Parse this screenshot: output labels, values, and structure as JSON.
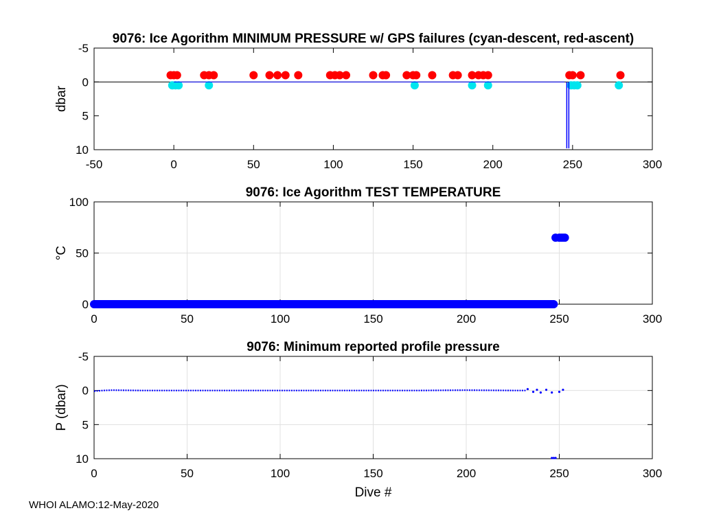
{
  "footer": "WHOI ALAMO:12-May-2020",
  "colors": {
    "cyan": "#00e5ee",
    "red": "#ff0000",
    "blue": "#0000ff",
    "grid": "#e0e0e0",
    "axis": "#000000"
  },
  "chart_data": [
    {
      "type": "scatter",
      "title": "9076: Ice Agorithm MINIMUM PRESSURE w/ GPS failures (cyan-descent, red-ascent)",
      "xlabel": "",
      "ylabel": "dbar",
      "xlim": [
        -50,
        300
      ],
      "ylim": [
        -5,
        10
      ],
      "y_reversed": true,
      "xticks": [
        -50,
        0,
        50,
        100,
        150,
        200,
        250,
        300
      ],
      "yticks": [
        -5,
        0,
        5,
        10
      ],
      "grid": false,
      "series": [
        {
          "color": "cyan",
          "marker": "circle",
          "x": [
            -1,
            1,
            3,
            22,
            151,
            187,
            197,
            249,
            251,
            253,
            279
          ],
          "y": [
            0.5,
            0.5,
            0.5,
            0.5,
            0.5,
            0.5,
            0.5,
            0.5,
            0.5,
            0.5,
            0.5
          ]
        },
        {
          "color": "red",
          "marker": "circle",
          "x": [
            -2,
            0,
            2,
            19,
            22,
            25,
            50,
            60,
            65,
            70,
            78,
            98,
            101,
            104,
            108,
            125,
            131,
            133,
            146,
            150,
            152,
            162,
            175,
            178,
            187,
            191,
            194,
            197,
            248,
            250,
            255,
            280
          ],
          "y": [
            -1,
            -1,
            -1,
            -1,
            -1,
            -1,
            -1,
            -1,
            -1,
            -1,
            -1,
            -1,
            -1,
            -1,
            -1,
            -1,
            -1,
            -1,
            -1,
            -1,
            -1,
            -1,
            -1,
            -1,
            -1,
            -1,
            -1,
            -1,
            -1,
            -1,
            -1,
            -1
          ]
        },
        {
          "color": "blue",
          "marker": "line",
          "x": [
            0,
            50,
            100,
            150,
            200,
            245
          ],
          "y": [
            0,
            0,
            0,
            0,
            0,
            0
          ]
        },
        {
          "color": "blue",
          "marker": "spike",
          "x": [
            247,
            247
          ],
          "y": [
            0,
            9.8
          ]
        }
      ]
    },
    {
      "type": "scatter",
      "title": "9076: Ice Agorithm TEST TEMPERATURE",
      "xlabel": "",
      "ylabel": "°C",
      "xlim": [
        0,
        300
      ],
      "ylim": [
        0,
        100
      ],
      "y_reversed": false,
      "xticks": [
        0,
        50,
        100,
        150,
        200,
        250,
        300
      ],
      "yticks": [
        0,
        50,
        100
      ],
      "grid": true,
      "series": [
        {
          "color": "blue",
          "marker": "filled-band",
          "x": [
            0,
            247
          ],
          "y": [
            0,
            0
          ]
        },
        {
          "color": "blue",
          "marker": "circle",
          "x": [
            248,
            250,
            251,
            252,
            253
          ],
          "y": [
            65,
            65,
            65,
            65,
            65
          ]
        }
      ]
    },
    {
      "type": "scatter",
      "title": "9076: Minimum reported profile pressure",
      "xlabel": "Dive #",
      "ylabel": "P (dbar)",
      "xlim": [
        0,
        300
      ],
      "ylim": [
        -5,
        10
      ],
      "y_reversed": true,
      "xticks": [
        0,
        50,
        100,
        150,
        200,
        250,
        300
      ],
      "yticks": [
        -5,
        0,
        5,
        10
      ],
      "grid": true,
      "series": [
        {
          "color": "blue",
          "marker": "dot-line",
          "x": [
            0,
            5,
            10,
            25,
            50,
            75,
            100,
            125,
            150,
            175,
            200,
            225,
            232
          ],
          "y": [
            0.1,
            0,
            -0.05,
            0,
            0,
            0,
            0,
            0,
            0,
            0,
            -0.05,
            0,
            0
          ]
        },
        {
          "color": "blue",
          "marker": "dot",
          "x": [
            233,
            236,
            238,
            240,
            243,
            246,
            250,
            252
          ],
          "y": [
            -0.2,
            0.2,
            -0.1,
            0.3,
            -0.1,
            0.3,
            0.2,
            -0.1
          ]
        },
        {
          "color": "blue",
          "marker": "dot",
          "x": [
            246,
            247,
            248
          ],
          "y": [
            9.9,
            9.9,
            9.9
          ]
        }
      ]
    }
  ]
}
